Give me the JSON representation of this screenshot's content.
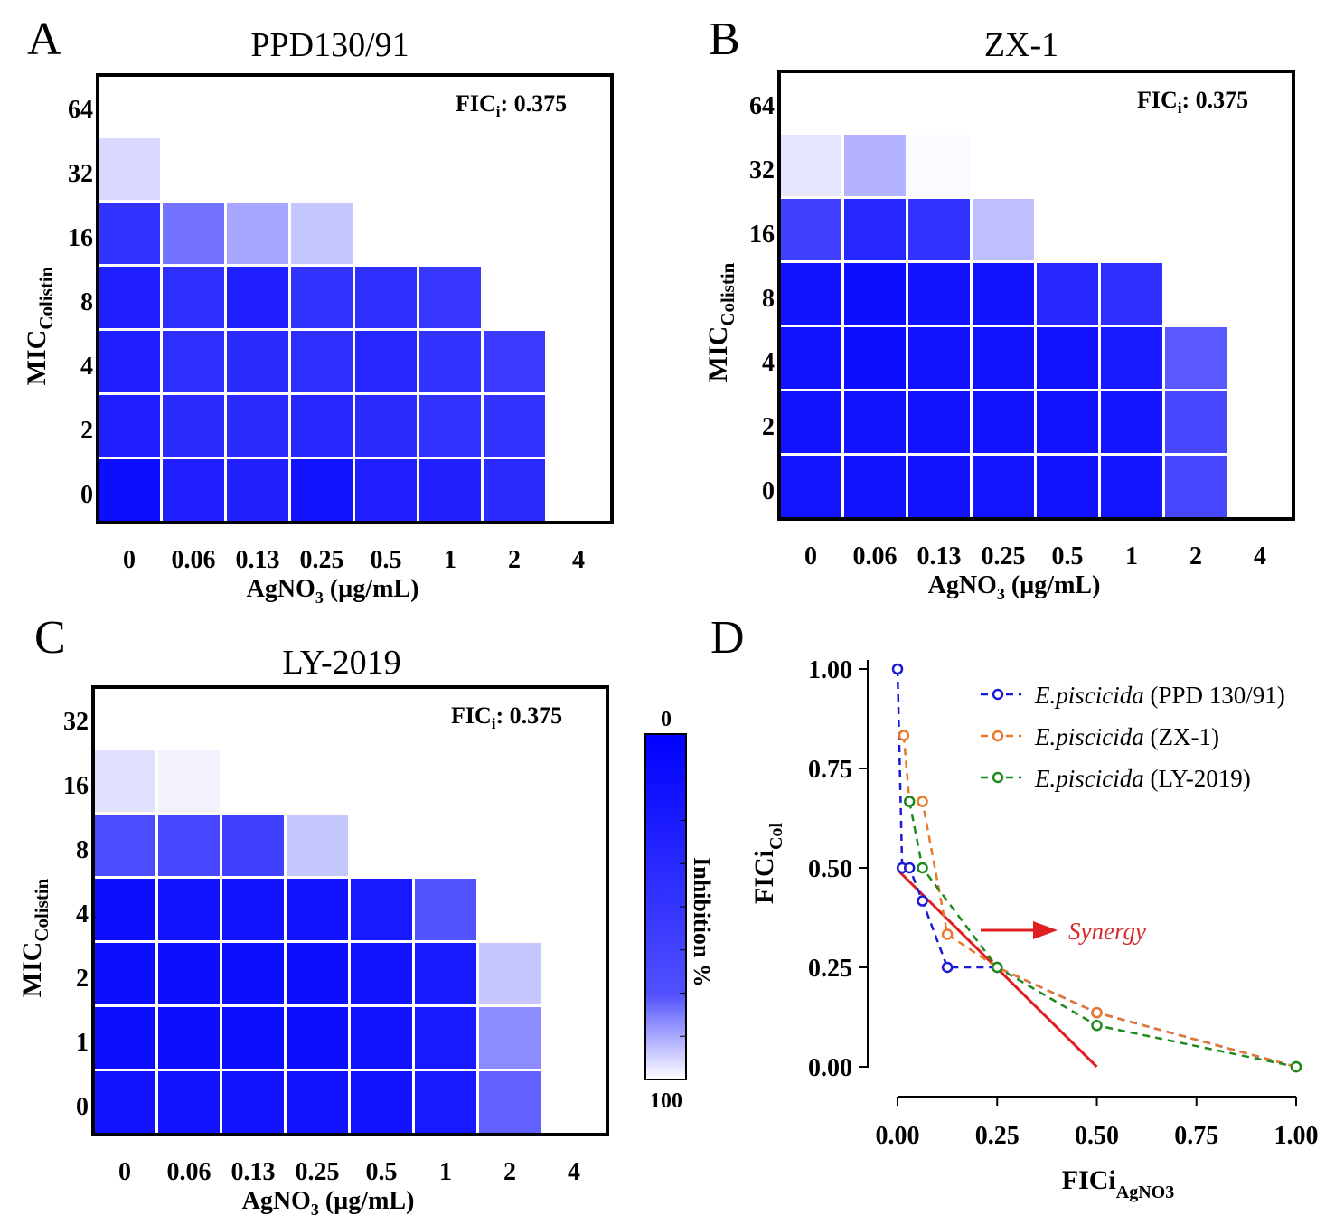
{
  "chart_data": [
    {
      "type": "heatmap",
      "panel": "A",
      "title": "PPD130/91",
      "fici_label": "FIC",
      "fici_sub": "i",
      "fici_value": "0.375",
      "xlabel": "AgNO",
      "xlabel_sub": "3",
      "xlabel_unit": " (µg/mL)",
      "ylabel": "MIC",
      "ylabel_sub": "Colistin",
      "x": [
        "0",
        "0.06",
        "0.13",
        "0.25",
        "0.5",
        "1",
        "2",
        "4"
      ],
      "y": [
        "64",
        "32",
        "16",
        "8",
        "4",
        "2",
        "0"
      ],
      "values": [
        [
          0,
          0,
          0,
          0,
          0,
          0,
          0,
          0
        ],
        [
          15,
          0,
          0,
          0,
          0,
          0,
          0,
          0
        ],
        [
          80,
          55,
          35,
          22,
          0,
          0,
          0,
          0
        ],
        [
          88,
          82,
          88,
          80,
          82,
          78,
          0,
          0
        ],
        [
          88,
          82,
          83,
          82,
          85,
          80,
          77,
          0
        ],
        [
          88,
          83,
          83,
          84,
          83,
          80,
          80,
          0
        ],
        [
          95,
          88,
          87,
          93,
          88,
          87,
          83,
          0
        ]
      ]
    },
    {
      "type": "heatmap",
      "panel": "B",
      "title": "ZX-1",
      "fici_label": "FIC",
      "fici_sub": "i",
      "fici_value": "0.375",
      "xlabel": "AgNO",
      "xlabel_sub": "3",
      "xlabel_unit": " (µg/mL)",
      "ylabel": "MIC",
      "ylabel_sub": "Colistin",
      "x": [
        "0",
        "0.06",
        "0.13",
        "0.25",
        "0.5",
        "1",
        "2",
        "4"
      ],
      "y": [
        "64",
        "32",
        "16",
        "8",
        "4",
        "2",
        "0"
      ],
      "values": [
        [
          0,
          0,
          0,
          0,
          0,
          0,
          0,
          0
        ],
        [
          10,
          30,
          2,
          0,
          0,
          0,
          0,
          0
        ],
        [
          75,
          85,
          80,
          25,
          0,
          0,
          0,
          0
        ],
        [
          93,
          95,
          93,
          93,
          85,
          82,
          0,
          0
        ],
        [
          93,
          95,
          93,
          93,
          93,
          90,
          65,
          0
        ],
        [
          93,
          93,
          93,
          93,
          93,
          92,
          72,
          0
        ],
        [
          92,
          93,
          93,
          92,
          93,
          92,
          72,
          0
        ]
      ]
    },
    {
      "type": "heatmap",
      "panel": "C",
      "title": "LY-2019",
      "fici_label": "FIC",
      "fici_sub": "i",
      "fici_value": "0.375",
      "xlabel": "AgNO",
      "xlabel_sub": "3",
      "xlabel_unit": " (µg/mL)",
      "ylabel": "MIC",
      "ylabel_sub": "Colistin",
      "x": [
        "0",
        "0.06",
        "0.13",
        "0.25",
        "0.5",
        "1",
        "2",
        "4"
      ],
      "y": [
        "32",
        "16",
        "8",
        "4",
        "2",
        "1",
        "0"
      ],
      "values": [
        [
          0,
          0,
          0,
          0,
          0,
          0,
          0,
          0
        ],
        [
          12,
          5,
          0,
          0,
          0,
          0,
          0,
          0
        ],
        [
          70,
          72,
          75,
          22,
          0,
          0,
          0,
          0
        ],
        [
          95,
          93,
          93,
          93,
          90,
          68,
          0,
          0
        ],
        [
          95,
          95,
          95,
          95,
          93,
          90,
          22,
          0
        ],
        [
          95,
          95,
          95,
          95,
          93,
          90,
          45,
          0
        ],
        [
          93,
          93,
          93,
          93,
          93,
          90,
          62,
          0
        ]
      ],
      "colorbar": {
        "label": "Inhibition %",
        "top": "0",
        "bottom": "100"
      }
    },
    {
      "type": "line",
      "panel": "D",
      "xlabel": "FICi",
      "xlabel_sub": "AgNO3",
      "ylabel": "FICi",
      "ylabel_sub": "Col",
      "xlim": [
        0,
        1
      ],
      "ylim": [
        0,
        1
      ],
      "xticks": [
        "0.00",
        "0.25",
        "0.50",
        "0.75",
        "1.00"
      ],
      "yticks": [
        "0.00",
        "0.25",
        "0.50",
        "0.75",
        "1.00"
      ],
      "legend_position": "top-right",
      "series": [
        {
          "name_italic": "E.piscicida",
          "name": " (PPD 130/91)",
          "color": "#1a1ad6",
          "x": [
            0,
            0.0117,
            0.03,
            0.0625,
            0.125,
            0.25,
            0.5,
            1
          ],
          "y": [
            1,
            0.5,
            0.5,
            0.417,
            0.25,
            0.25,
            0.136,
            0
          ]
        },
        {
          "name_italic": "E.piscicida",
          "name": " (ZX-1)",
          "color": "#e8782a",
          "x": [
            0.0156,
            0.03,
            0.0625,
            0.125,
            0.25,
            0.5,
            1
          ],
          "y": [
            0.833,
            0.667,
            0.667,
            0.333,
            0.25,
            0.136,
            0
          ]
        },
        {
          "name_italic": "E.piscicida",
          "name": " (LY-2019)",
          "color": "#1c8a1c",
          "x": [
            0.03,
            0.0625,
            0.25,
            0.5,
            1
          ],
          "y": [
            0.667,
            0.5,
            0.25,
            0.104,
            0
          ]
        }
      ],
      "reference_line": {
        "x": [
          0.005,
          0.5
        ],
        "y": [
          0.49,
          0
        ],
        "color": "#e02020"
      },
      "annotation": "Synergy"
    }
  ],
  "panel_letters": [
    "A",
    "B",
    "C",
    "D"
  ]
}
